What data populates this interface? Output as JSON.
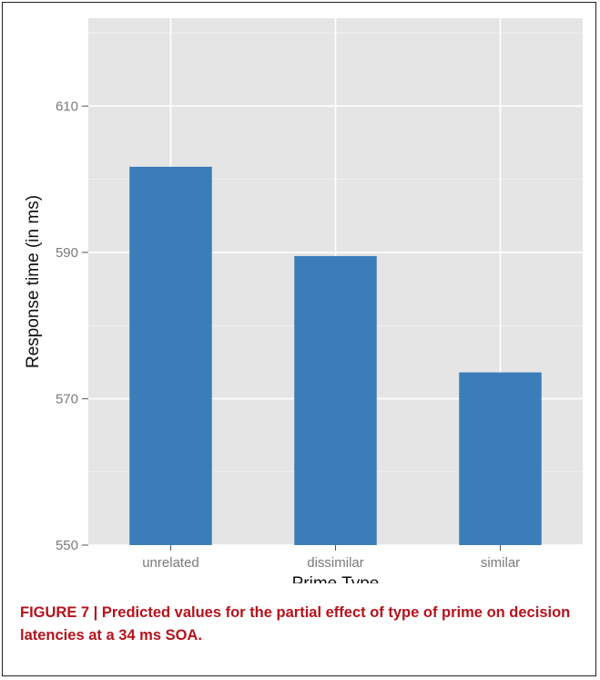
{
  "chart_data": {
    "type": "bar",
    "categories": [
      "unrelated",
      "dissimilar",
      "similar"
    ],
    "values": [
      601.7,
      589.5,
      573.6
    ],
    "xlabel": "Prime Type",
    "ylabel": "Response time (in ms)",
    "ylim": [
      550,
      622
    ],
    "yticks": [
      550,
      570,
      590,
      610
    ],
    "grid": true,
    "bar_color": "#3a7dba",
    "panel_color": "#e5e5e5",
    "grid_color": "#ffffff"
  },
  "caption": "FIGURE 7 | Predicted values for the partial effect of type of prime on decision latencies at a 34 ms SOA."
}
